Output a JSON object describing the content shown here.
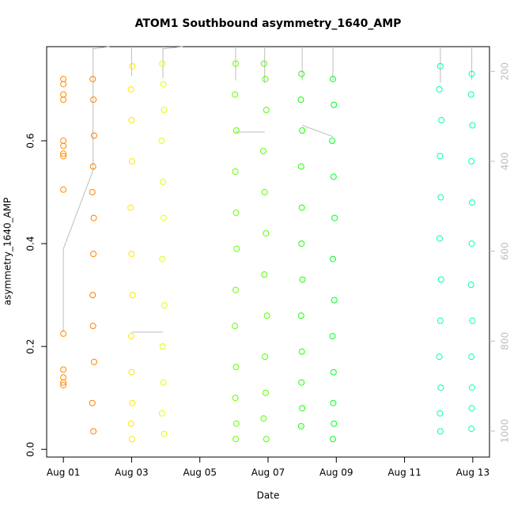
{
  "chart_data": {
    "type": "scatter",
    "title": "ATOM1 Southbound asymmetry_1640_AMP",
    "x_label": "Date",
    "y_label": "asymmetry_1640_AMP",
    "xlim": [
      0.51,
      13.49
    ],
    "xticks": [
      {
        "value": 1,
        "label": "Aug 01"
      },
      {
        "value": 3,
        "label": "Aug 03"
      },
      {
        "value": 5,
        "label": "Aug 05"
      },
      {
        "value": 7,
        "label": "Aug 07"
      },
      {
        "value": 9,
        "label": "Aug 09"
      },
      {
        "value": 11,
        "label": "Aug 11"
      },
      {
        "value": 13,
        "label": "Aug 13"
      }
    ],
    "ylim": [
      -0.015,
      0.783
    ],
    "yticks": [
      {
        "value": 0,
        "label": "0.0"
      },
      0.2,
      0.4,
      0.6
    ],
    "y2lim": [
      1058,
      145
    ],
    "y2ticks": [
      200,
      400,
      600,
      800,
      1000
    ],
    "series": [
      {
        "color": "#bdbdbd",
        "axis": "y2",
        "x": [
          1.0,
          1.0,
          1.87,
          1.87,
          2.35,
          null,
          3.0,
          3.92,
          null,
          3.92,
          4.5,
          null,
          6.05,
          6.9,
          null,
          8.0,
          8.9,
          null,
          1.87,
          1.87,
          null,
          3.0,
          3.0,
          null,
          3.92,
          3.92,
          null,
          6.05,
          6.05,
          null,
          6.9,
          6.9,
          null,
          8.0,
          8.0,
          null,
          8.9,
          8.9,
          null,
          12.05,
          12.05,
          null,
          12.97,
          12.97
        ],
        "values": [
          780,
          595,
          420,
          150,
          145,
          null,
          780,
          780,
          null,
          150,
          145,
          null,
          335,
          335,
          null,
          320,
          345,
          null,
          145,
          215,
          null,
          145,
          210,
          null,
          145,
          215,
          null,
          145,
          220,
          null,
          145,
          225,
          null,
          145,
          220,
          null,
          145,
          220,
          null,
          145,
          225,
          null,
          145,
          220
        ]
      },
      {
        "color": "#ff8c00",
        "x": [
          1.0,
          1.0,
          1.0,
          1.0,
          1.0,
          1.0,
          1.0,
          1.0,
          1.0,
          1.0,
          1.0,
          1.0,
          1.0,
          1.0
        ],
        "values": [
          0.72,
          0.71,
          0.69,
          0.68,
          0.6,
          0.59,
          0.575,
          0.57,
          0.505,
          0.225,
          0.155,
          0.14,
          0.13,
          0.125
        ]
      },
      {
        "color": "#ff8000",
        "x": [
          1.86,
          1.88,
          1.9,
          1.87,
          1.85,
          1.89,
          1.88,
          1.86,
          1.87,
          1.9,
          1.85,
          1.88
        ],
        "values": [
          0.72,
          0.68,
          0.61,
          0.55,
          0.5,
          0.45,
          0.38,
          0.3,
          0.24,
          0.17,
          0.09,
          0.035
        ]
      },
      {
        "color": "#ffe600",
        "x": [
          3.02,
          2.98,
          3.0,
          3.01,
          2.97,
          3.0,
          3.03,
          2.99,
          3.0,
          3.02,
          2.98,
          3.01
        ],
        "values": [
          0.745,
          0.7,
          0.64,
          0.56,
          0.47,
          0.38,
          0.3,
          0.22,
          0.15,
          0.09,
          0.05,
          0.02
        ]
      },
      {
        "color": "#e5ff00",
        "x": [
          3.9,
          3.93,
          3.95,
          3.88,
          3.92,
          3.94,
          3.9,
          3.96,
          3.91,
          3.93,
          3.89,
          3.95
        ],
        "values": [
          0.75,
          0.71,
          0.66,
          0.6,
          0.52,
          0.45,
          0.37,
          0.28,
          0.2,
          0.13,
          0.07,
          0.03
        ]
      },
      {
        "color": "#66ff00",
        "x": [
          6.05,
          6.03,
          6.07,
          6.04,
          6.06,
          6.08,
          6.05,
          6.03,
          6.06,
          6.04,
          6.07,
          6.05
        ],
        "values": [
          0.75,
          0.69,
          0.62,
          0.54,
          0.46,
          0.39,
          0.31,
          0.24,
          0.16,
          0.1,
          0.05,
          0.02
        ]
      },
      {
        "color": "#55ff00",
        "x": [
          6.88,
          6.92,
          6.95,
          6.86,
          6.9,
          6.94,
          6.89,
          6.97,
          6.91,
          6.93,
          6.87,
          6.95
        ],
        "values": [
          0.75,
          0.72,
          0.66,
          0.58,
          0.5,
          0.42,
          0.34,
          0.26,
          0.18,
          0.11,
          0.06,
          0.02
        ]
      },
      {
        "color": "#1aff00",
        "x": [
          7.98,
          7.96,
          8.0,
          7.97,
          7.99,
          7.98,
          8.01,
          7.97,
          7.99,
          7.98,
          8.0,
          7.97
        ],
        "values": [
          0.73,
          0.68,
          0.62,
          0.55,
          0.47,
          0.4,
          0.33,
          0.26,
          0.19,
          0.13,
          0.08,
          0.045
        ]
      },
      {
        "color": "#00ff22",
        "x": [
          8.9,
          8.93,
          8.88,
          8.92,
          8.95,
          8.9,
          8.94,
          8.89,
          8.92,
          8.91,
          8.93,
          8.9
        ],
        "values": [
          0.72,
          0.67,
          0.6,
          0.53,
          0.45,
          0.37,
          0.29,
          0.22,
          0.15,
          0.09,
          0.05,
          0.02
        ]
      },
      {
        "color": "#00ffb0",
        "x": [
          12.05,
          12.02,
          12.08,
          12.04,
          12.06,
          12.03,
          12.07,
          12.05,
          12.02,
          12.06,
          12.04,
          12.05
        ],
        "values": [
          0.745,
          0.7,
          0.64,
          0.57,
          0.49,
          0.41,
          0.33,
          0.25,
          0.18,
          0.12,
          0.07,
          0.035
        ]
      },
      {
        "color": "#00ffbb",
        "x": [
          12.97,
          12.95,
          12.99,
          12.96,
          12.98,
          12.97,
          12.95,
          12.99,
          12.96,
          12.98,
          12.97,
          12.96
        ],
        "values": [
          0.73,
          0.69,
          0.63,
          0.56,
          0.48,
          0.4,
          0.32,
          0.25,
          0.18,
          0.12,
          0.08,
          0.04
        ]
      }
    ]
  }
}
